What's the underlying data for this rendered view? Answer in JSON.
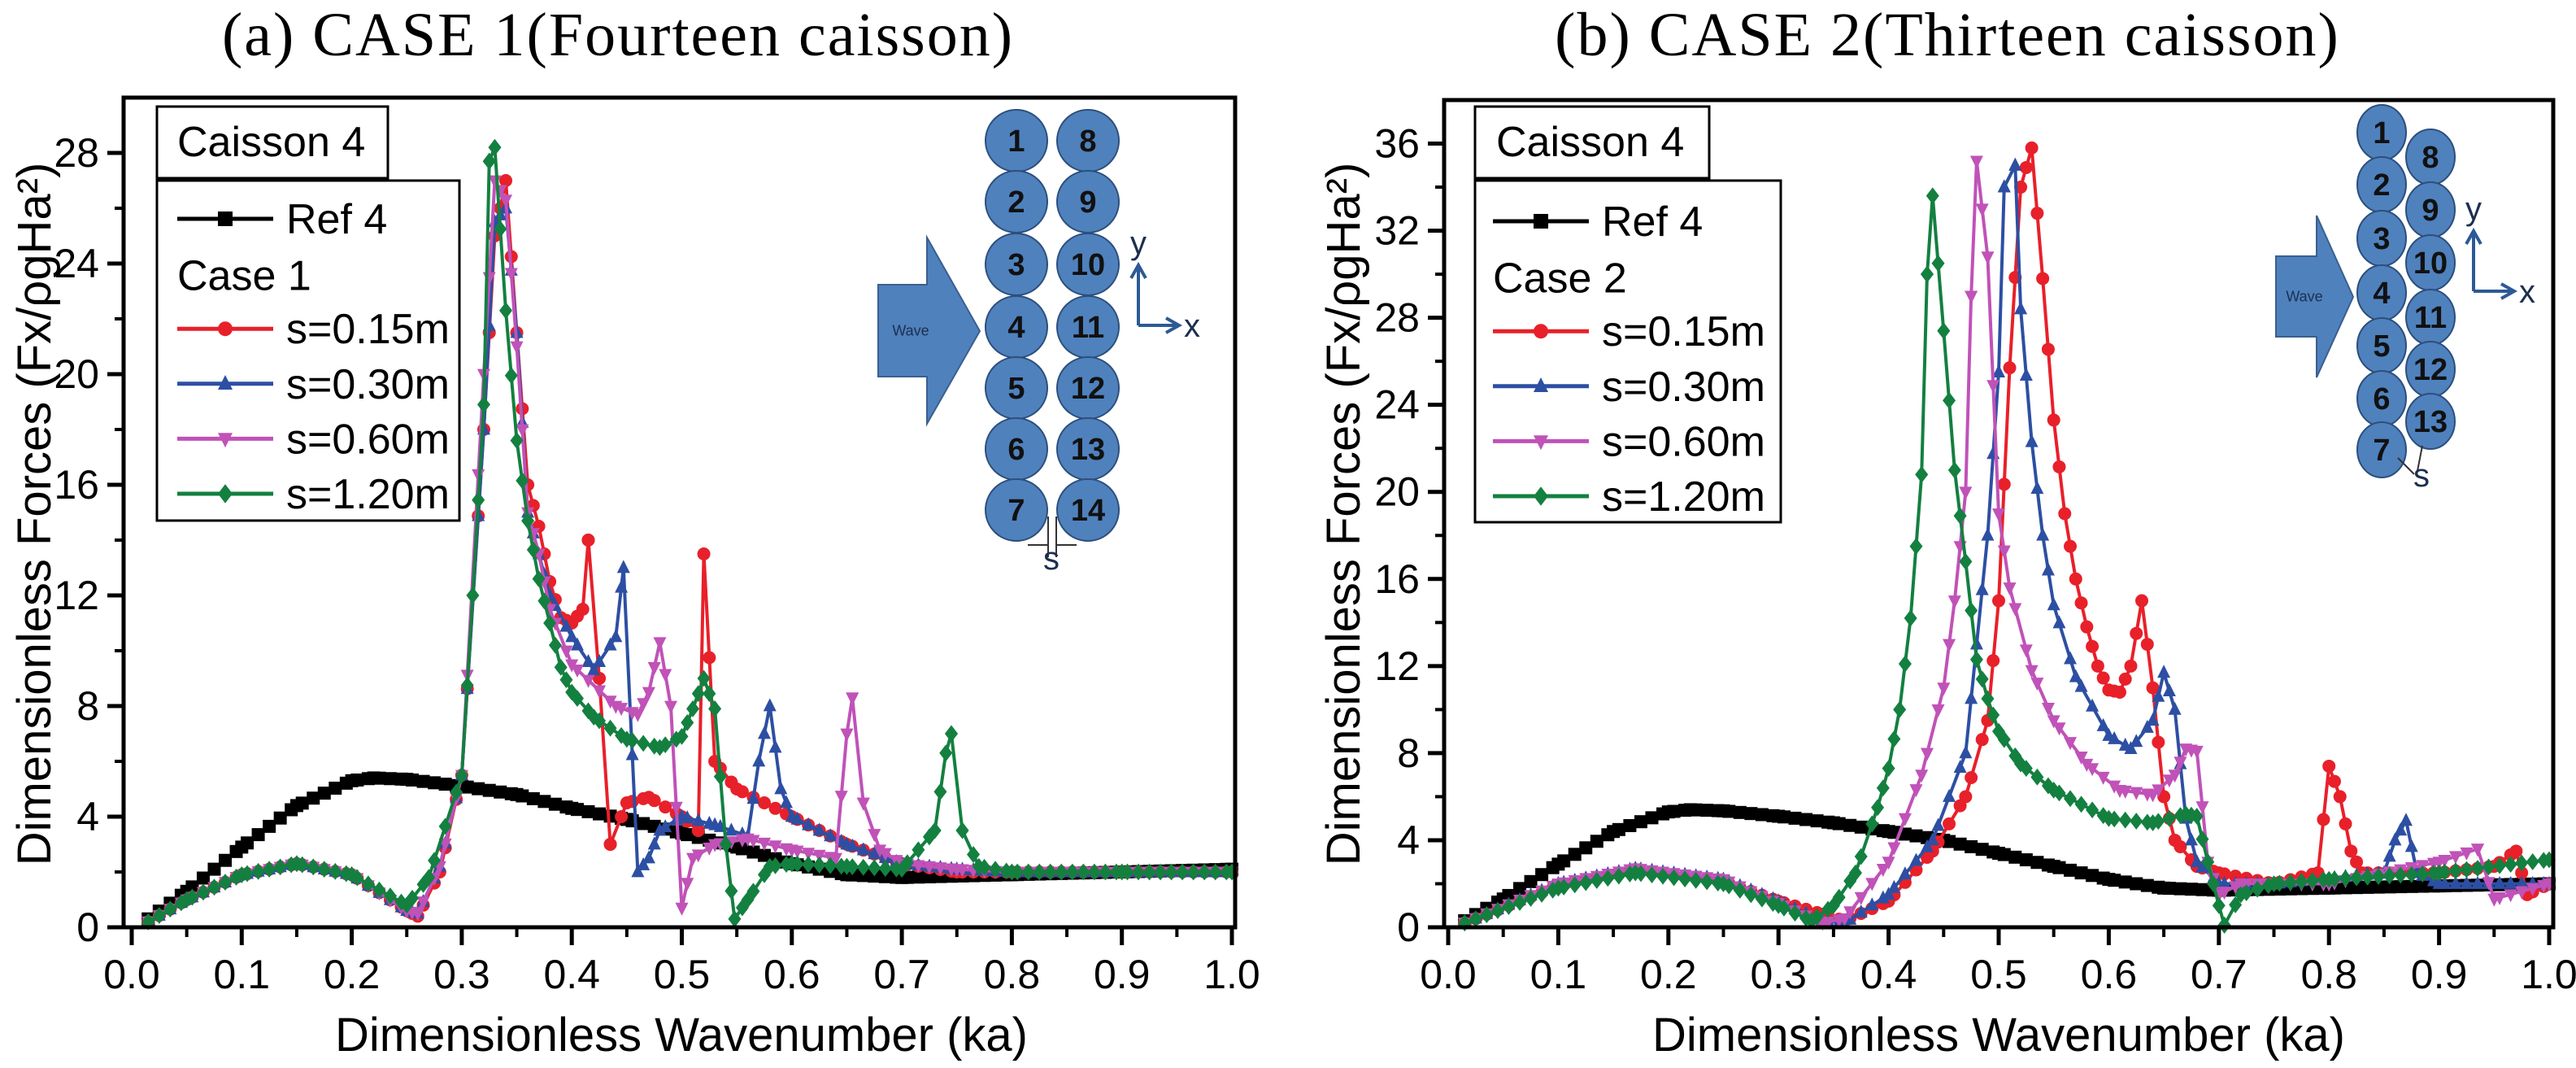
{
  "chart_data": [
    {
      "type": "line",
      "title": "(a) CASE 1(Fourteen caisson)",
      "xlabel": "Dimensionless Wavenumber (ka)",
      "ylabel": "Dimensionless Forces (Fx/ρgHa²)",
      "xlim": [
        0,
        1.0
      ],
      "ylim": [
        0,
        30
      ],
      "xticks": [
        "0.0",
        "0.1",
        "0.2",
        "0.3",
        "0.4",
        "0.5",
        "0.6",
        "0.7",
        "0.8",
        "0.9",
        "1.0"
      ],
      "yticks": [
        "0",
        "4",
        "8",
        "12",
        "16",
        "20",
        "24",
        "28"
      ],
      "grid": false,
      "legend_position": "top-left",
      "legend_header": "Caisson 4",
      "legend_group": "Case 1",
      "series": [
        {
          "name": "Ref 4",
          "color": "#000000",
          "marker": "square",
          "x": [
            0.015,
            0.05,
            0.1,
            0.15,
            0.2,
            0.22,
            0.25,
            0.3,
            0.35,
            0.4,
            0.45,
            0.5,
            0.55,
            0.6,
            0.65,
            0.7,
            0.8,
            0.9,
            1.0
          ],
          "y": [
            0.3,
            1.3,
            2.9,
            4.4,
            5.3,
            5.4,
            5.35,
            5.1,
            4.8,
            4.3,
            3.9,
            3.4,
            2.9,
            2.3,
            1.9,
            1.8,
            1.9,
            2.0,
            2.1
          ]
        },
        {
          "name": "s=0.15m",
          "color": "#e8202a",
          "marker": "circle",
          "x": [
            0.015,
            0.05,
            0.1,
            0.15,
            0.2,
            0.25,
            0.26,
            0.28,
            0.3,
            0.32,
            0.33,
            0.34,
            0.35,
            0.36,
            0.37,
            0.38,
            0.39,
            0.4,
            0.41,
            0.415,
            0.425,
            0.435,
            0.45,
            0.47,
            0.5,
            0.515,
            0.52,
            0.53,
            0.55,
            0.6,
            0.65,
            0.7,
            0.75,
            0.8,
            0.9,
            1.0
          ],
          "y": [
            0.2,
            1.0,
            1.9,
            2.3,
            1.9,
            0.6,
            0.4,
            2.0,
            5.5,
            18,
            25,
            27,
            21.5,
            16,
            14.5,
            12.5,
            11.2,
            11.0,
            11.5,
            14,
            9,
            3,
            4.5,
            4.7,
            4.0,
            3.5,
            13.5,
            6,
            5,
            4,
            3,
            2.3,
            2.0,
            2.0,
            2.0,
            2.0
          ]
        },
        {
          "name": "s=0.30m",
          "color": "#2d4fa3",
          "marker": "triangle-up",
          "x": [
            0.015,
            0.05,
            0.1,
            0.15,
            0.2,
            0.25,
            0.26,
            0.28,
            0.3,
            0.32,
            0.33,
            0.34,
            0.35,
            0.36,
            0.37,
            0.38,
            0.4,
            0.42,
            0.44,
            0.447,
            0.46,
            0.47,
            0.48,
            0.5,
            0.53,
            0.56,
            0.57,
            0.58,
            0.59,
            0.6,
            0.65,
            0.7,
            0.75,
            0.8,
            0.9,
            1.0
          ],
          "y": [
            0.2,
            1.0,
            1.9,
            2.3,
            1.9,
            0.6,
            0.5,
            2.2,
            5.5,
            18,
            25.5,
            26,
            21.5,
            15,
            13.5,
            12,
            10.5,
            9.3,
            10.5,
            13,
            2,
            2.5,
            3.5,
            4,
            3.7,
            3.3,
            6,
            8,
            5,
            4,
            3,
            2.3,
            2.1,
            2.0,
            2.0,
            2.0
          ]
        },
        {
          "name": "s=0.60m",
          "color": "#c052b8",
          "marker": "triangle-down",
          "x": [
            0.015,
            0.05,
            0.1,
            0.15,
            0.2,
            0.25,
            0.26,
            0.28,
            0.3,
            0.32,
            0.33,
            0.34,
            0.35,
            0.36,
            0.37,
            0.38,
            0.4,
            0.44,
            0.46,
            0.47,
            0.48,
            0.49,
            0.5,
            0.51,
            0.53,
            0.56,
            0.6,
            0.64,
            0.65,
            0.655,
            0.665,
            0.68,
            0.7,
            0.75,
            0.8,
            0.9,
            1.0
          ],
          "y": [
            0.2,
            1.0,
            1.9,
            2.3,
            1.9,
            0.6,
            0.5,
            2.2,
            5.5,
            20,
            27,
            26.3,
            21,
            15,
            13.5,
            11.5,
            9.5,
            8,
            7.7,
            8.5,
            10.3,
            8,
            0.7,
            2.5,
            3,
            3.2,
            2.8,
            2.5,
            7,
            8.3,
            4.5,
            2.8,
            2.3,
            2.1,
            2.0,
            2.0,
            2.0
          ]
        },
        {
          "name": "s=1.20m",
          "color": "#138040",
          "marker": "diamond",
          "x": [
            0.015,
            0.05,
            0.1,
            0.15,
            0.2,
            0.25,
            0.27,
            0.3,
            0.31,
            0.32,
            0.325,
            0.33,
            0.34,
            0.35,
            0.36,
            0.37,
            0.38,
            0.39,
            0.4,
            0.42,
            0.45,
            0.48,
            0.5,
            0.51,
            0.52,
            0.53,
            0.54,
            0.548,
            0.56,
            0.58,
            0.6,
            0.65,
            0.7,
            0.73,
            0.74,
            0.745,
            0.755,
            0.77,
            0.8,
            0.9,
            1.0
          ],
          "y": [
            0.2,
            1.0,
            1.9,
            2.3,
            1.9,
            0.8,
            1.8,
            5.5,
            12,
            18.9,
            27.7,
            28.2,
            22.3,
            17.6,
            14.7,
            12.6,
            11,
            9.4,
            8.5,
            7.6,
            6.8,
            6.5,
            6.9,
            7.9,
            9,
            7.9,
            3,
            0.3,
            1,
            2.2,
            2.3,
            2.2,
            2.1,
            3.5,
            6.3,
            7,
            3.5,
            2.2,
            2.0,
            2.0,
            2.0
          ]
        }
      ],
      "inset": {
        "caissons": [
          "1",
          "2",
          "3",
          "4",
          "5",
          "6",
          "7",
          "8",
          "9",
          "10",
          "11",
          "12",
          "13",
          "14"
        ],
        "wave_label": "Wave",
        "axis_x": "x",
        "axis_y": "y",
        "gap_label": "s",
        "fill_color": "#4f81bd"
      }
    },
    {
      "type": "line",
      "title": "(b) CASE 2(Thirteen caisson)",
      "xlabel": "Dimensionless Wavenumber (ka)",
      "ylabel": "Dimensionless Forces (Fx/ρgHa²)",
      "xlim": [
        0,
        1.0
      ],
      "ylim": [
        0,
        38
      ],
      "xticks": [
        "0.0",
        "0.1",
        "0.2",
        "0.3",
        "0.4",
        "0.5",
        "0.6",
        "0.7",
        "0.8",
        "0.9",
        "1.0"
      ],
      "yticks": [
        "0",
        "4",
        "8",
        "12",
        "16",
        "20",
        "24",
        "28",
        "32",
        "36"
      ],
      "grid": false,
      "legend_position": "top-left",
      "legend_header": "Caisson 4",
      "legend_group": "Case 2",
      "series": [
        {
          "name": "Ref 4",
          "color": "#000000",
          "marker": "square",
          "x": [
            0.015,
            0.05,
            0.1,
            0.15,
            0.2,
            0.22,
            0.25,
            0.3,
            0.35,
            0.4,
            0.45,
            0.5,
            0.55,
            0.6,
            0.65,
            0.7,
            0.8,
            0.9,
            1.0
          ],
          "y": [
            0.3,
            1.3,
            2.9,
            4.4,
            5.3,
            5.4,
            5.35,
            5.1,
            4.8,
            4.4,
            4.0,
            3.4,
            2.8,
            2.2,
            1.8,
            1.7,
            1.8,
            1.9,
            2.0
          ]
        },
        {
          "name": "s=0.15m",
          "color": "#e8202a",
          "marker": "circle",
          "x": [
            0.015,
            0.1,
            0.17,
            0.25,
            0.3,
            0.34,
            0.36,
            0.4,
            0.44,
            0.47,
            0.49,
            0.5,
            0.51,
            0.52,
            0.53,
            0.54,
            0.55,
            0.56,
            0.57,
            0.58,
            0.59,
            0.6,
            0.61,
            0.62,
            0.63,
            0.64,
            0.65,
            0.66,
            0.68,
            0.7,
            0.75,
            0.79,
            0.8,
            0.81,
            0.82,
            0.83,
            0.9,
            0.95,
            0.97,
            0.98,
            1.0
          ],
          "y": [
            0.2,
            1.9,
            2.6,
            2.1,
            1.2,
            0.6,
            0.3,
            1.2,
            3.5,
            6,
            9.5,
            15,
            25.7,
            34,
            35.8,
            29.8,
            23.3,
            19,
            16,
            13.8,
            12,
            10.9,
            10.8,
            12,
            15,
            11,
            6,
            4,
            2.8,
            2.5,
            2.0,
            2.5,
            7.4,
            6,
            3.5,
            2.5,
            2.5,
            2.8,
            3.5,
            1.5,
            2.0
          ]
        },
        {
          "name": "s=0.30m",
          "color": "#2d4fa3",
          "marker": "triangle-up",
          "x": [
            0.015,
            0.1,
            0.17,
            0.25,
            0.3,
            0.34,
            0.36,
            0.4,
            0.44,
            0.47,
            0.48,
            0.49,
            0.5,
            0.505,
            0.515,
            0.52,
            0.53,
            0.54,
            0.55,
            0.57,
            0.6,
            0.62,
            0.64,
            0.65,
            0.66,
            0.67,
            0.68,
            0.7,
            0.75,
            0.85,
            0.86,
            0.87,
            0.88,
            0.9,
            1.0
          ],
          "y": [
            0.2,
            2,
            2.7,
            2.2,
            1.2,
            0.3,
            0.2,
            1.5,
            4,
            8,
            13,
            18,
            25.5,
            34,
            35,
            28.4,
            22.3,
            18,
            14.8,
            11.5,
            8.8,
            8.2,
            9.5,
            11.7,
            10,
            5,
            3,
            2,
            2,
            2.5,
            4,
            4.9,
            2.5,
            2,
            2
          ]
        },
        {
          "name": "s=0.60m",
          "color": "#c052b8",
          "marker": "triangle-down",
          "x": [
            0.015,
            0.1,
            0.17,
            0.25,
            0.3,
            0.34,
            0.36,
            0.4,
            0.43,
            0.45,
            0.46,
            0.47,
            0.475,
            0.48,
            0.49,
            0.5,
            0.51,
            0.53,
            0.55,
            0.58,
            0.61,
            0.64,
            0.66,
            0.67,
            0.68,
            0.69,
            0.7,
            0.72,
            0.8,
            0.9,
            0.935,
            0.95,
            1.0
          ],
          "y": [
            0.2,
            2,
            2.7,
            2.2,
            1.1,
            0.2,
            0.4,
            3,
            7,
            11,
            15,
            20,
            29,
            35.2,
            30.8,
            19,
            15.6,
            11.8,
            9.5,
            7.5,
            6.3,
            6.1,
            7,
            8.2,
            8.1,
            3,
            1.5,
            2,
            2,
            3,
            3.6,
            1.3,
            2
          ]
        },
        {
          "name": "s=1.20m",
          "color": "#138040",
          "marker": "diamond",
          "x": [
            0.015,
            0.1,
            0.17,
            0.25,
            0.3,
            0.33,
            0.35,
            0.37,
            0.39,
            0.4,
            0.41,
            0.42,
            0.43,
            0.435,
            0.44,
            0.45,
            0.46,
            0.47,
            0.48,
            0.49,
            0.5,
            0.52,
            0.55,
            0.6,
            0.64,
            0.67,
            0.68,
            0.69,
            0.7,
            0.705,
            0.72,
            0.75,
            0.8,
            0.9,
            1.0
          ],
          "y": [
            0.2,
            1.8,
            2.5,
            2,
            1,
            0.3,
            1,
            2.5,
            5.5,
            7.3,
            10,
            14.2,
            20.8,
            30,
            33.6,
            27.4,
            21,
            16.8,
            12.3,
            10.5,
            9,
            7.5,
            6.3,
            5,
            4.8,
            5.2,
            5.1,
            3,
            1,
            0.1,
            1.5,
            2,
            2.2,
            2.5,
            3.1
          ]
        }
      ],
      "inset": {
        "caissons": [
          "1",
          "2",
          "3",
          "4",
          "5",
          "6",
          "7",
          "8",
          "9",
          "10",
          "11",
          "12",
          "13"
        ],
        "wave_label": "Wave",
        "axis_x": "x",
        "axis_y": "y",
        "gap_label": "s",
        "fill_color": "#4f81bd"
      }
    }
  ]
}
